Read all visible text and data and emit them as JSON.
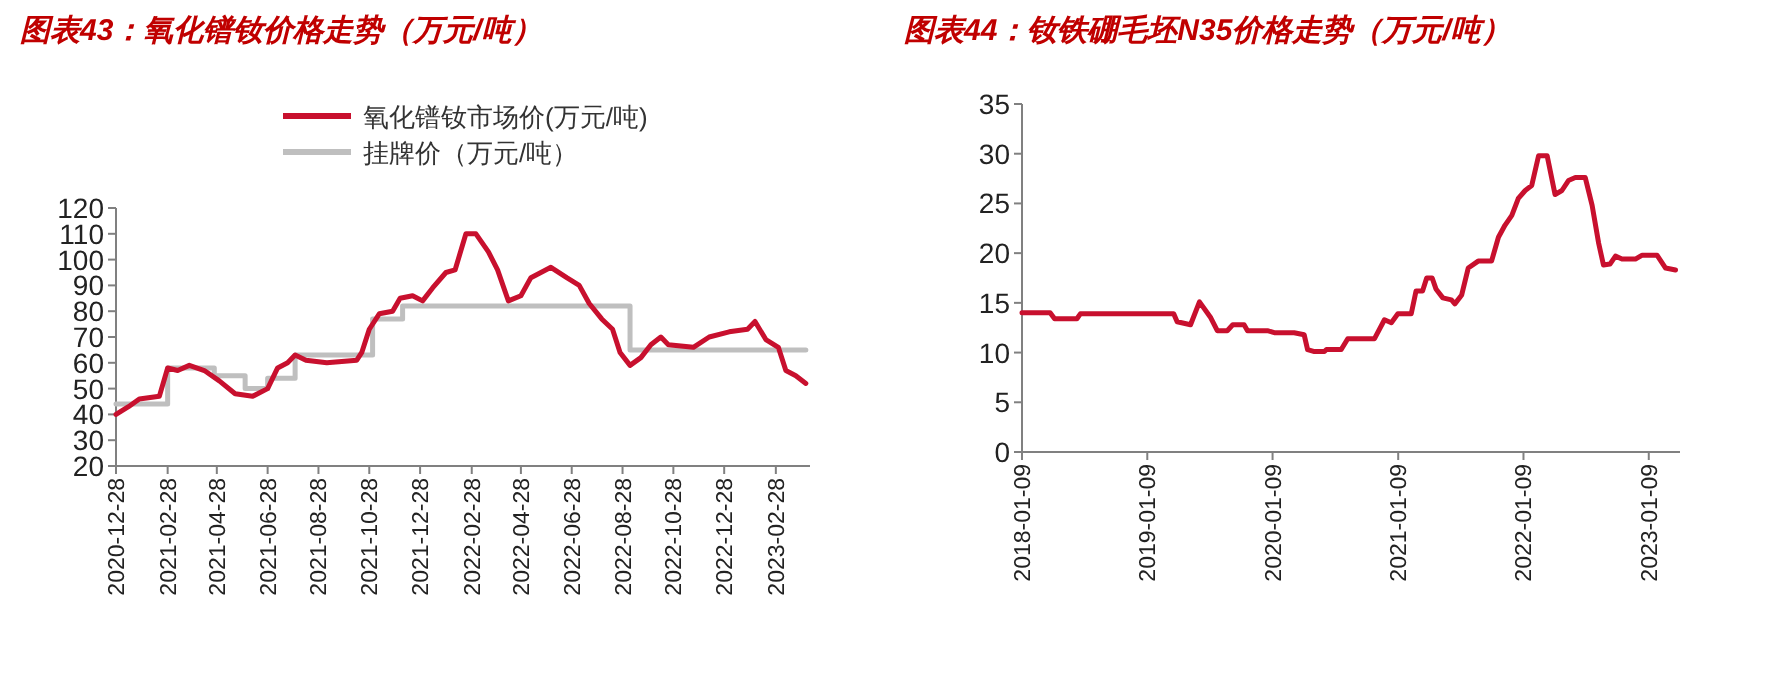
{
  "chart_data": [
    {
      "type": "line",
      "title": "图表43：氧化镨钕价格走势（万元/吨）",
      "legend": "top",
      "xlim": [
        "2020-12-28",
        "2023-04-10"
      ],
      "xticks": [
        "2020-12-28",
        "2021-02-28",
        "2021-04-28",
        "2021-06-28",
        "2021-08-28",
        "2021-10-28",
        "2021-12-28",
        "2022-02-28",
        "2022-04-28",
        "2022-06-28",
        "2022-08-28",
        "2022-10-28",
        "2022-12-28",
        "2023-02-28"
      ],
      "ylim": [
        20,
        120
      ],
      "yticks": [
        20,
        30,
        40,
        50,
        60,
        70,
        80,
        90,
        100,
        110,
        120
      ],
      "series": [
        {
          "name": "氧化镨钕市场价(万元/吨)",
          "color": "#c8102e",
          "type": "line",
          "x": [
            "2020-12-28",
            "2021-01-12",
            "2021-01-25",
            "2021-02-18",
            "2021-02-28",
            "2021-03-12",
            "2021-03-26",
            "2021-04-13",
            "2021-05-01",
            "2021-05-20",
            "2021-06-10",
            "2021-06-28",
            "2021-07-10",
            "2021-07-22",
            "2021-07-31",
            "2021-08-13",
            "2021-09-07",
            "2021-10-13",
            "2021-10-19",
            "2021-10-28",
            "2021-11-09",
            "2021-11-25",
            "2021-12-04",
            "2021-12-19",
            "2021-12-31",
            "2022-01-12",
            "2022-01-28",
            "2022-02-08",
            "2022-02-21",
            "2022-03-05",
            "2022-03-20",
            "2022-03-31",
            "2022-04-13",
            "2022-04-28",
            "2022-05-10",
            "2022-06-03",
            "2022-06-22",
            "2022-07-07",
            "2022-07-19",
            "2022-08-03",
            "2022-08-16",
            "2022-08-25",
            "2022-09-06",
            "2022-09-19",
            "2022-10-01",
            "2022-10-13",
            "2022-10-22",
            "2022-11-21",
            "2022-12-10",
            "2023-01-03",
            "2023-01-25",
            "2023-02-03",
            "2023-02-16",
            "2023-03-03",
            "2023-03-12",
            "2023-03-24",
            "2023-04-05"
          ],
          "values": [
            40,
            43,
            46,
            47,
            58,
            57,
            59,
            57,
            53,
            48,
            47,
            50,
            58,
            60,
            63,
            61,
            60,
            61,
            64,
            73,
            79,
            80,
            85,
            86,
            84,
            89,
            95,
            96,
            110,
            110,
            103,
            96,
            84,
            86,
            93,
            97,
            93,
            90,
            83,
            77,
            73,
            64,
            59,
            62,
            67,
            70,
            67,
            66,
            70,
            72,
            73,
            76,
            69,
            66,
            57,
            55,
            52
          ]
        },
        {
          "name": "挂牌价（万元/吨）",
          "color": "#bfbfbf",
          "type": "step",
          "x": [
            "2020-12-28",
            "2021-02-28",
            "2021-04-25",
            "2021-06-01",
            "2021-06-28",
            "2021-07-31",
            "2021-11-01",
            "2021-12-07",
            "2022-09-06",
            "2023-04-05"
          ],
          "values": [
            44,
            58,
            55,
            50,
            54,
            63,
            77,
            82,
            65,
            65
          ]
        }
      ]
    },
    {
      "type": "line",
      "title": "图表44：钕铁硼毛坯N35价格走势（万元/吨）",
      "xlim": [
        "2018-01-09",
        "2023-04-10"
      ],
      "xticks": [
        "2018-01-09",
        "2019-01-09",
        "2020-01-09",
        "2021-01-09",
        "2022-01-09",
        "2023-01-09"
      ],
      "ylim": [
        0,
        35
      ],
      "yticks": [
        0,
        5,
        10,
        15,
        20,
        25,
        30,
        35
      ],
      "series": [
        {
          "color": "#c8102e",
          "type": "line",
          "x": [
            "2018-01-09",
            "2018-04-01",
            "2018-04-14",
            "2018-06-18",
            "2018-06-28",
            "2019-03-27",
            "2019-04-06",
            "2019-05-15",
            "2019-06-10",
            "2019-07-13",
            "2019-08-01",
            "2019-08-30",
            "2019-09-15",
            "2019-10-18",
            "2019-10-28",
            "2019-12-25",
            "2020-01-14",
            "2020-03-12",
            "2020-04-10",
            "2020-04-20",
            "2020-05-10",
            "2020-06-08",
            "2020-06-14",
            "2020-07-27",
            "2020-08-15",
            "2020-11-01",
            "2020-11-30",
            "2020-12-20",
            "2021-01-08",
            "2021-02-16",
            "2021-03-02",
            "2021-03-21",
            "2021-04-02",
            "2021-04-18",
            "2021-04-29",
            "2021-05-19",
            "2021-06-13",
            "2021-06-23",
            "2021-07-13",
            "2021-08-01",
            "2021-08-30",
            "2021-10-08",
            "2021-10-28",
            "2021-11-16",
            "2021-12-06",
            "2021-12-25",
            "2022-01-14",
            "2022-02-02",
            "2022-02-22",
            "2022-03-19",
            "2022-04-11",
            "2022-05-01",
            "2022-05-20",
            "2022-06-09",
            "2022-07-08",
            "2022-07-28",
            "2022-08-16",
            "2022-08-30",
            "2022-09-18",
            "2022-10-04",
            "2022-10-23",
            "2022-12-01",
            "2022-12-21",
            "2023-02-02",
            "2023-02-27",
            "2023-03-28"
          ],
          "values": [
            14,
            14,
            13.4,
            13.4,
            13.9,
            13.9,
            13.1,
            12.8,
            15.1,
            13.5,
            12.2,
            12.2,
            12.8,
            12.8,
            12.2,
            12.2,
            12,
            12,
            11.8,
            10.3,
            10.1,
            10.1,
            10.3,
            10.3,
            11.4,
            11.4,
            13.3,
            13,
            13.9,
            13.9,
            16.2,
            16.2,
            17.5,
            17.5,
            16.4,
            15.5,
            15.3,
            14.9,
            15.8,
            18.5,
            19.2,
            19.2,
            21.6,
            22.8,
            23.8,
            25.5,
            26.3,
            26.8,
            29.8,
            29.8,
            25.9,
            26.3,
            27.3,
            27.6,
            27.6,
            24.8,
            21,
            18.8,
            18.9,
            19.7,
            19.4,
            19.4,
            19.8,
            19.8,
            18.5,
            18.3
          ]
        }
      ]
    }
  ]
}
